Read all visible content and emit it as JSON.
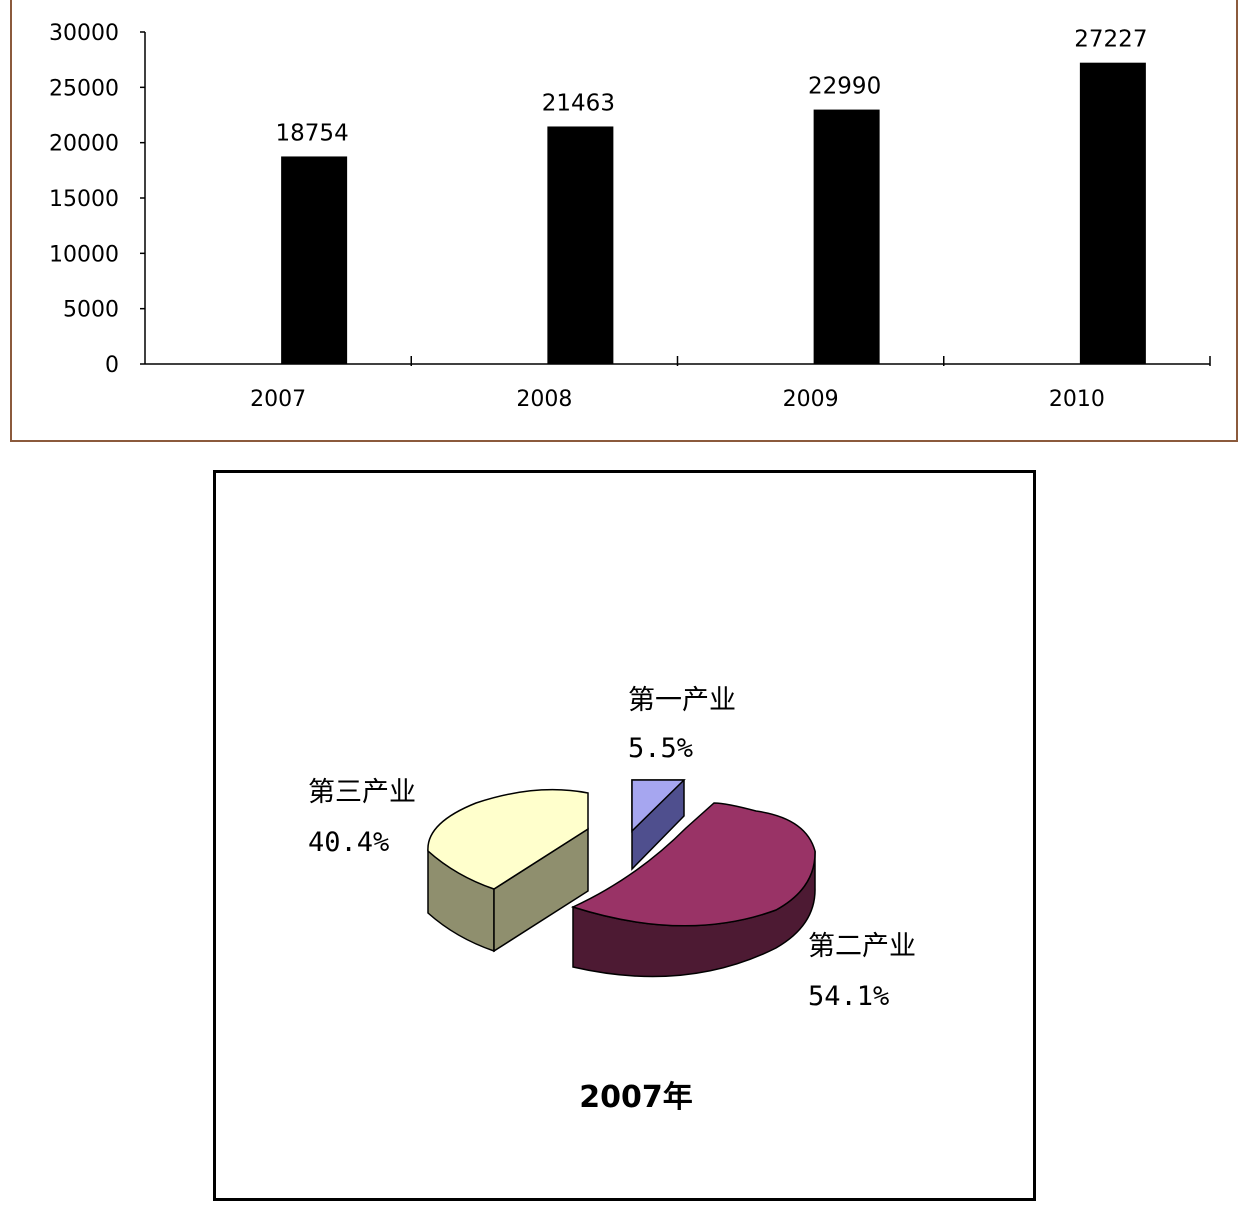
{
  "chart_data": [
    {
      "type": "bar",
      "categories": [
        "2007",
        "2008",
        "2009",
        "2010"
      ],
      "values": [
        18754,
        21463,
        22990,
        27227
      ],
      "value_labels": [
        "18754",
        "21463",
        "22990",
        "27227"
      ],
      "yticks": [
        "0",
        "5000",
        "10000",
        "15000",
        "20000",
        "25000",
        "30000"
      ],
      "ylim": [
        0,
        30000
      ],
      "bar_color": "#000000",
      "title": "",
      "xlabel": "",
      "ylabel": ""
    },
    {
      "type": "pie",
      "title": "2007年",
      "slices": [
        {
          "name": "第一产业",
          "value": 5.5,
          "label": "5.5%",
          "color": "#a6a6f0",
          "side_color": "#4f4f8e"
        },
        {
          "name": "第二产业",
          "value": 54.1,
          "label": "54.1%",
          "color": "#993366",
          "side_color": "#4d1a33"
        },
        {
          "name": "第三产业",
          "value": 40.4,
          "label": "40.4%",
          "color": "#ffffcc",
          "side_color": "#8f8f6e"
        }
      ]
    }
  ]
}
